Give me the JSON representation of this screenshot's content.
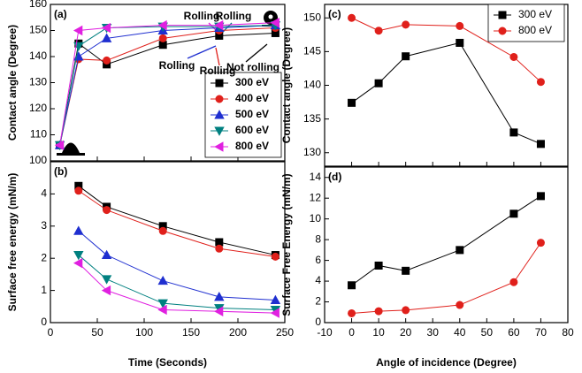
{
  "chart_data": [
    {
      "type": "line",
      "panel_label": "(a)",
      "ylabel": "Contact angle (Degree)",
      "xlim": [
        0,
        250
      ],
      "xticks": [
        0,
        50,
        100,
        150,
        200,
        250
      ],
      "show_xtick_labels": false,
      "ylim": [
        100,
        160
      ],
      "yticks": [
        100,
        110,
        120,
        130,
        140,
        150,
        160
      ],
      "x": [
        10,
        30,
        60,
        120,
        180,
        240
      ],
      "legend": "lower right",
      "series": [
        {
          "name": "300 eV",
          "color": "#000000",
          "marker": "square",
          "values": [
            106,
            145,
            137,
            144.5,
            148,
            149
          ]
        },
        {
          "name": "400 eV",
          "color": "#e0201b",
          "marker": "circle",
          "values": [
            106,
            139,
            138.5,
            147,
            150,
            151
          ]
        },
        {
          "name": "500 eV",
          "color": "#1f2fd0",
          "marker": "triangle-up",
          "values": [
            106,
            140,
            147,
            150,
            151,
            152
          ]
        },
        {
          "name": "600 eV",
          "color": "#008080",
          "marker": "triangle-down",
          "values": [
            106,
            144,
            151,
            151.5,
            151.5,
            152
          ]
        },
        {
          "name": "800 eV",
          "color": "#e020e0",
          "marker": "triangle-left",
          "values": [
            106,
            150,
            151,
            152,
            152,
            153
          ]
        }
      ],
      "annotations": [
        {
          "text": "Rolling",
          "color": "#e020e0"
        },
        {
          "text": "Rolling",
          "color": "#008080"
        },
        {
          "text": "Rolling",
          "color": "#1f2fd0"
        },
        {
          "text": "Rolling",
          "color": "#e0201b"
        },
        {
          "text": "Not rolling",
          "color": "#000000"
        }
      ]
    },
    {
      "type": "line",
      "panel_label": "(b)",
      "ylabel": "Surface free energy (mN/m)",
      "xlabel": "Time (Seconds)",
      "xlim": [
        0,
        250
      ],
      "xticks": [
        0,
        50,
        100,
        150,
        200,
        250
      ],
      "show_xtick_labels": true,
      "ylim": [
        0,
        5
      ],
      "yticks": [
        0,
        1,
        2,
        3,
        4
      ],
      "x": [
        30,
        60,
        120,
        180,
        240
      ],
      "series": [
        {
          "name": "300 eV",
          "color": "#000000",
          "marker": "square",
          "values": [
            4.25,
            3.6,
            3.0,
            2.5,
            2.1
          ]
        },
        {
          "name": "400 eV",
          "color": "#e0201b",
          "marker": "circle",
          "values": [
            4.1,
            3.5,
            2.85,
            2.3,
            2.05
          ]
        },
        {
          "name": "500 eV",
          "color": "#1f2fd0",
          "marker": "triangle-up",
          "values": [
            2.85,
            2.1,
            1.3,
            0.8,
            0.7
          ]
        },
        {
          "name": "600 eV",
          "color": "#008080",
          "marker": "triangle-down",
          "values": [
            2.1,
            1.35,
            0.6,
            0.45,
            0.4
          ]
        },
        {
          "name": "800 eV",
          "color": "#e020e0",
          "marker": "triangle-left",
          "values": [
            1.85,
            1.0,
            0.4,
            0.35,
            0.3
          ]
        }
      ]
    },
    {
      "type": "line",
      "panel_label": "(c)",
      "ylabel": "Contact angle (Degree)",
      "xlim": [
        -10,
        80
      ],
      "xticks": [
        -10,
        0,
        10,
        20,
        30,
        40,
        50,
        60,
        70,
        80
      ],
      "show_xtick_labels": false,
      "ylim": [
        128,
        152
      ],
      "yticks": [
        130,
        135,
        140,
        145,
        150
      ],
      "x": [
        0,
        10,
        20,
        40,
        60,
        70
      ],
      "legend": "upper right",
      "series": [
        {
          "name": "300 eV",
          "color": "#000000",
          "marker": "square",
          "values": [
            137.4,
            140.3,
            144.3,
            146.3,
            133,
            131.3
          ]
        },
        {
          "name": "800 eV",
          "color": "#e0201b",
          "marker": "circle",
          "values": [
            150,
            148.1,
            149,
            148.8,
            144.2,
            140.5
          ]
        }
      ]
    },
    {
      "type": "line",
      "panel_label": "(d)",
      "ylabel": "Surface Free Energy (mN/m)",
      "xlabel": "Angle of incidence (Degree)",
      "xlim": [
        -10,
        80
      ],
      "xticks": [
        -10,
        0,
        10,
        20,
        30,
        40,
        50,
        60,
        70,
        80
      ],
      "show_xtick_labels": true,
      "ylim": [
        0,
        15
      ],
      "yticks": [
        0,
        2,
        4,
        6,
        8,
        10,
        12,
        14
      ],
      "x": [
        0,
        10,
        20,
        40,
        60,
        70
      ],
      "series": [
        {
          "name": "300 eV",
          "color": "#000000",
          "marker": "square",
          "values": [
            3.6,
            5.5,
            5,
            7,
            10.5,
            12.2
          ]
        },
        {
          "name": "800 eV",
          "color": "#e0201b",
          "marker": "circle",
          "values": [
            0.9,
            1.1,
            1.2,
            1.7,
            3.9,
            7.7
          ]
        }
      ]
    }
  ]
}
